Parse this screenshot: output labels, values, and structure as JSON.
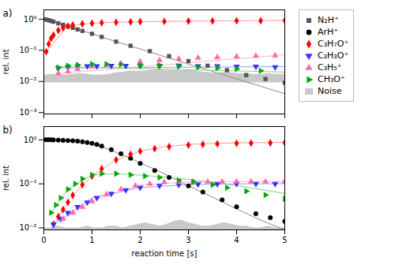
{
  "chart_data": [
    {
      "type": "scatter",
      "annotation": "a)",
      "ylabel": "rel. int",
      "log": "y",
      "xlim": [
        0,
        5
      ],
      "xticks": [
        0,
        1,
        2,
        3,
        4,
        5
      ],
      "ylim": [
        0.0009,
        2.0
      ],
      "yticks": [
        {
          "value": 0.001,
          "label": "10⁻³"
        },
        {
          "value": 0.01,
          "label": "10⁻²"
        },
        {
          "value": 0.1,
          "label": "10⁻¹"
        },
        {
          "value": 1,
          "label": "10⁰"
        }
      ],
      "tick_labels": "y",
      "legend": "right",
      "series": [
        {
          "name": "N₂H⁺",
          "marker": "square",
          "color": "#555555",
          "x": [
            0.0,
            0.05,
            0.1,
            0.15,
            0.2,
            0.3,
            0.4,
            0.5,
            0.6,
            0.7,
            0.8,
            1.0,
            1.2,
            1.5,
            1.8,
            2.2,
            2.6,
            3.0,
            3.4,
            3.8,
            4.2,
            4.6,
            5.0
          ],
          "values": [
            1.0,
            0.97,
            0.93,
            0.88,
            0.83,
            0.74,
            0.66,
            0.59,
            0.53,
            0.47,
            0.42,
            0.34,
            0.27,
            0.19,
            0.14,
            0.094,
            0.065,
            0.045,
            0.032,
            0.023,
            0.016,
            0.012,
            0.009
          ],
          "fit": {
            "color": "#888888",
            "x": [
              0.15,
              0.5,
              1.0,
              1.5,
              2.0,
              2.5,
              3.0,
              3.5,
              4.0,
              4.5,
              5.0
            ],
            "values": [
              0.88,
              0.59,
              0.34,
              0.19,
              0.11,
              0.063,
              0.036,
              0.021,
              0.012,
              0.007,
              0.004
            ]
          }
        },
        {
          "name": "C₃H₇O⁺",
          "marker": "diamond",
          "color": "#FF0000",
          "x": [
            0.05,
            0.1,
            0.15,
            0.2,
            0.3,
            0.4,
            0.5,
            0.6,
            0.8,
            1.0,
            1.2,
            1.5,
            1.8,
            2.0,
            2.5,
            3.0,
            3.5,
            4.0,
            4.5,
            5.0
          ],
          "values": [
            0.09,
            0.16,
            0.24,
            0.31,
            0.44,
            0.53,
            0.6,
            0.65,
            0.71,
            0.74,
            0.77,
            0.8,
            0.82,
            0.83,
            0.85,
            0.87,
            0.88,
            0.89,
            0.9,
            0.91
          ],
          "fit": {
            "color": "#FF9999",
            "x": [
              0.05,
              0.5,
              1.0,
              1.5,
              2.0,
              2.5,
              3.0,
              3.5,
              4.0,
              4.5,
              5.0
            ],
            "values": [
              0.09,
              0.6,
              0.74,
              0.8,
              0.83,
              0.85,
              0.87,
              0.88,
              0.89,
              0.905,
              0.915
            ]
          }
        },
        {
          "name": "C₂H₃O⁺",
          "marker": "triangle-down",
          "color": "#3333FF",
          "x": [
            0.3,
            0.5,
            0.7,
            0.9,
            1.1,
            1.4,
            1.7,
            2.0,
            2.4,
            2.8,
            3.2,
            3.6,
            4.0,
            4.4,
            4.8
          ],
          "values": [
            0.027,
            0.029,
            0.03,
            0.031,
            0.031,
            0.032,
            0.032,
            0.032,
            0.032,
            0.032,
            0.031,
            0.031,
            0.03,
            0.03,
            0.029
          ],
          "fit": {
            "color": "#9999FF",
            "x": [
              0.3,
              5.0
            ],
            "values": [
              0.027,
              0.03
            ]
          }
        },
        {
          "name": "C₃H₅⁺",
          "marker": "triangle-up",
          "color": "#FF69B4",
          "x": [
            0.3,
            0.5,
            0.7,
            1.0,
            1.3,
            1.6,
            2.0,
            2.4,
            2.8,
            3.2,
            3.6,
            4.0,
            4.4,
            4.8
          ],
          "values": [
            0.018,
            0.021,
            0.025,
            0.03,
            0.034,
            0.038,
            0.043,
            0.048,
            0.053,
            0.057,
            0.06,
            0.063,
            0.066,
            0.068
          ],
          "fit": {
            "color": "#FFB6C1",
            "x": [
              0.3,
              5.0
            ],
            "values": [
              0.018,
              0.072
            ]
          }
        },
        {
          "name": "CH₃O⁺",
          "marker": "triangle-right",
          "color": "#00AA00",
          "x": [
            0.3,
            0.5,
            0.7,
            1.0,
            1.3,
            1.6,
            2.0,
            2.4,
            2.8,
            3.2,
            3.6,
            4.0,
            4.5
          ],
          "values": [
            0.028,
            0.032,
            0.034,
            0.036,
            0.036,
            0.035,
            0.034,
            0.033,
            0.031,
            0.029,
            0.027,
            0.025,
            0.022
          ],
          "fit": {
            "color": "#88CC88",
            "x": [
              0.3,
              5.0
            ],
            "values": [
              0.03,
              0.02
            ]
          }
        },
        {
          "name": "Noise",
          "type": "area",
          "color": "#C8C8C8",
          "base": 0.009,
          "x": [
            0.0,
            0.15,
            0.3,
            0.45,
            0.6,
            0.75,
            0.9,
            1.05,
            1.2,
            1.35,
            1.5,
            1.65,
            1.8,
            1.95,
            2.1,
            2.25,
            2.4,
            2.55,
            2.7,
            2.85,
            3.0,
            3.15,
            3.3,
            3.45,
            3.6,
            3.75,
            3.9,
            4.05,
            4.2,
            4.35,
            4.5,
            4.65,
            4.8,
            5.0
          ],
          "values": [
            0.016,
            0.017,
            0.017,
            0.016,
            0.017,
            0.018,
            0.017,
            0.016,
            0.016,
            0.017,
            0.019,
            0.02,
            0.022,
            0.021,
            0.022,
            0.023,
            0.024,
            0.022,
            0.023,
            0.022,
            0.024,
            0.022,
            0.02,
            0.019,
            0.018,
            0.02,
            0.019,
            0.018,
            0.018,
            0.017,
            0.017,
            0.018,
            0.017,
            0.017
          ]
        }
      ]
    },
    {
      "type": "scatter",
      "annotation": "b)",
      "ylabel": "rel. int",
      "xlabel": "reaction time [s]",
      "log": "y",
      "xlim": [
        0,
        5
      ],
      "xticks": [
        0,
        1,
        2,
        3,
        4,
        5
      ],
      "ylim": [
        0.009,
        2.0
      ],
      "yticks": [
        {
          "value": 0.01,
          "label": "10⁻²"
        },
        {
          "value": 0.1,
          "label": "10⁻¹"
        },
        {
          "value": 1,
          "label": "10⁰"
        }
      ],
      "series": [
        {
          "name": "ArH⁺",
          "marker": "circle",
          "color": "#000000",
          "x": [
            0.0,
            0.05,
            0.1,
            0.15,
            0.2,
            0.3,
            0.4,
            0.5,
            0.6,
            0.7,
            0.8,
            0.9,
            1.0,
            1.1,
            1.2,
            1.4,
            1.6,
            1.8,
            2.0,
            2.3,
            2.6,
            3.0,
            3.3,
            3.7,
            4.0,
            4.4,
            4.7,
            5.0
          ],
          "values": [
            1.0,
            1.0,
            1.0,
            1.0,
            0.99,
            0.98,
            0.97,
            0.96,
            0.95,
            0.93,
            0.9,
            0.87,
            0.83,
            0.78,
            0.72,
            0.6,
            0.48,
            0.38,
            0.29,
            0.2,
            0.14,
            0.09,
            0.065,
            0.043,
            0.03,
            0.021,
            0.017,
            0.014
          ],
          "fit": {
            "color": "#888888",
            "x": [
              0.8,
              1.2,
              1.6,
              2.0,
              2.5,
              3.0,
              3.5,
              4.0,
              4.5,
              5.0
            ],
            "values": [
              0.9,
              0.7,
              0.47,
              0.3,
              0.17,
              0.09,
              0.05,
              0.027,
              0.015,
              0.009
            ]
          }
        },
        {
          "name": "C₃H₇O⁺",
          "marker": "diamond",
          "color": "#FF0000",
          "x": [
            0.2,
            0.3,
            0.4,
            0.5,
            0.6,
            0.8,
            1.0,
            1.2,
            1.5,
            1.8,
            2.0,
            2.3,
            2.6,
            3.0,
            3.3,
            3.6,
            4.0,
            4.3,
            4.7,
            5.0
          ],
          "values": [
            0.012,
            0.018,
            0.026,
            0.038,
            0.055,
            0.095,
            0.15,
            0.22,
            0.35,
            0.47,
            0.55,
            0.63,
            0.7,
            0.76,
            0.79,
            0.81,
            0.83,
            0.84,
            0.85,
            0.86
          ],
          "fit": {
            "color": "#FF9999",
            "x": [
              0.2,
              0.6,
              1.0,
              1.5,
              2.0,
              2.5,
              3.0,
              3.5,
              4.0,
              4.5,
              5.0
            ],
            "values": [
              0.012,
              0.055,
              0.15,
              0.35,
              0.55,
              0.7,
              0.78,
              0.83,
              0.855,
              0.865,
              0.875
            ]
          }
        },
        {
          "name": "C₂H₃O⁺",
          "marker": "triangle-down",
          "color": "#3333FF",
          "x": [
            0.2,
            0.35,
            0.5,
            0.7,
            0.9,
            1.1,
            1.4,
            1.7,
            2.0,
            2.4,
            2.8,
            3.2,
            3.6,
            4.0,
            4.4,
            4.8
          ],
          "values": [
            0.012,
            0.016,
            0.022,
            0.03,
            0.038,
            0.048,
            0.06,
            0.072,
            0.082,
            0.09,
            0.095,
            0.098,
            0.099,
            0.1,
            0.1,
            0.1
          ],
          "fit": {
            "color": "#9999FF",
            "x": [
              0.2,
              1.0,
              2.0,
              3.0,
              4.0,
              5.0
            ],
            "values": [
              0.012,
              0.048,
              0.082,
              0.096,
              0.1,
              0.101
            ]
          }
        },
        {
          "name": "C₃H₅⁺",
          "marker": "triangle-up",
          "color": "#FF69B4",
          "x": [
            0.4,
            0.6,
            0.8,
            1.0,
            1.3,
            1.6,
            1.9,
            2.2,
            2.5,
            2.8,
            3.1,
            3.4,
            3.7,
            4.0,
            4.3,
            4.6,
            5.0
          ],
          "values": [
            0.016,
            0.022,
            0.03,
            0.04,
            0.058,
            0.075,
            0.09,
            0.1,
            0.108,
            0.11,
            0.112,
            0.112,
            0.112,
            0.112,
            0.112,
            0.112,
            0.112
          ],
          "fit": {
            "color": "#FFB6C1",
            "x": [
              0.4,
              1.0,
              2.0,
              3.0,
              4.0,
              5.0
            ],
            "values": [
              0.016,
              0.04,
              0.095,
              0.11,
              0.113,
              0.114
            ]
          }
        },
        {
          "name": "CH₃O⁺",
          "marker": "triangle-right",
          "color": "#00AA00",
          "x": [
            0.15,
            0.25,
            0.35,
            0.5,
            0.65,
            0.8,
            1.0,
            1.2,
            1.5,
            1.8,
            2.1,
            2.4,
            2.8,
            3.1,
            3.5,
            3.8,
            4.2,
            4.6,
            5.0
          ],
          "values": [
            0.022,
            0.033,
            0.048,
            0.075,
            0.1,
            0.13,
            0.16,
            0.17,
            0.17,
            0.16,
            0.15,
            0.14,
            0.12,
            0.11,
            0.095,
            0.082,
            0.068,
            0.056,
            0.046
          ],
          "fit": {
            "color": "#88CC88",
            "x": [
              0.15,
              0.5,
              1.0,
              1.5,
              2.0,
              2.5,
              3.0,
              3.5,
              4.0,
              4.5,
              5.0
            ],
            "values": [
              0.022,
              0.075,
              0.16,
              0.17,
              0.158,
              0.143,
              0.126,
              0.108,
              0.091,
              0.075,
              0.06
            ]
          }
        },
        {
          "name": "Noise",
          "type": "area",
          "color": "#C8C8C8",
          "base": 0.009,
          "x": [
            0.0,
            0.15,
            0.3,
            0.45,
            0.6,
            0.75,
            0.9,
            1.05,
            1.2,
            1.35,
            1.5,
            1.65,
            1.8,
            1.95,
            2.1,
            2.25,
            2.4,
            2.55,
            2.7,
            2.85,
            3.0,
            3.15,
            3.3,
            3.45,
            3.6,
            3.75,
            3.9,
            4.05,
            4.2,
            4.35,
            4.5,
            4.65,
            4.8,
            5.0
          ],
          "values": [
            0.01,
            0.01,
            0.011,
            0.01,
            0.01,
            0.01,
            0.011,
            0.01,
            0.01,
            0.011,
            0.011,
            0.01,
            0.011,
            0.012,
            0.013,
            0.012,
            0.011,
            0.012,
            0.014,
            0.015,
            0.013,
            0.012,
            0.011,
            0.011,
            0.012,
            0.013,
            0.012,
            0.011,
            0.011,
            0.01,
            0.01,
            0.011,
            0.01,
            0.01
          ]
        }
      ]
    }
  ]
}
